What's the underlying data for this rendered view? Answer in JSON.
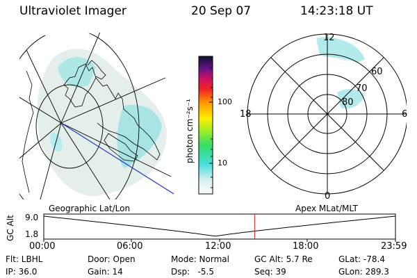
{
  "header": {
    "instrument": "Ultraviolet Imager",
    "date": "20 Sep 07",
    "time": "14:23:18 UT"
  },
  "colorbar": {
    "unit_label": "photon cm⁻²s⁻¹",
    "ticks": [
      "100",
      "10"
    ]
  },
  "polar": {
    "mlt_labels": [
      "12",
      "18",
      "6",
      "0"
    ],
    "lat_labels": [
      "60",
      "70",
      "80"
    ]
  },
  "timeline": {
    "left_title": "Geographic Lat/Lon",
    "right_title": "Apex MLat/MLT",
    "y_axis_label": "GC Alt",
    "y_ticks": [
      "9.0",
      "1.8"
    ],
    "x_ticks": [
      "00:00",
      "06:00",
      "12:00",
      "18:00",
      "23:59"
    ],
    "marker_color": "#cc2222",
    "series_color": "#000000"
  },
  "footer": {
    "rows": [
      [
        "Flt: LBHL",
        "Door: Open",
        "Mode: Normal",
        "GC Alt: 5.7 Re",
        "GLat: -78.4"
      ],
      [
        "IP: 36.0",
        "Gain: 14",
        "Dsp:   -5.5",
        "Seq: 39",
        "GLon: 289.3"
      ]
    ]
  },
  "colors": {
    "aurora": "#66dddd",
    "track": "#2233cc",
    "background": "#ffffff"
  }
}
